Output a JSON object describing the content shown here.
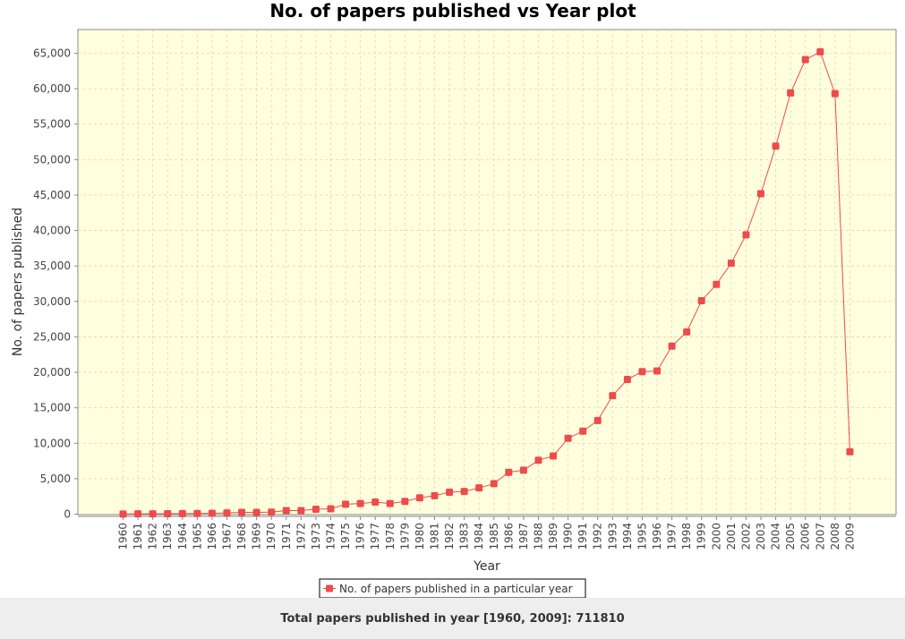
{
  "chart_data": {
    "type": "line",
    "title": "No. of papers published vs Year plot",
    "xlabel": "Year",
    "ylabel": "No. of papers published",
    "ylim": [
      0,
      68000
    ],
    "yticks": [
      0,
      5000,
      10000,
      15000,
      20000,
      25000,
      30000,
      35000,
      40000,
      45000,
      50000,
      55000,
      60000,
      65000
    ],
    "ytick_labels": [
      "0",
      "5,000",
      "10,000",
      "15,000",
      "20,000",
      "25,000",
      "30,000",
      "35,000",
      "40,000",
      "45,000",
      "50,000",
      "55,000",
      "60,000",
      "65,000"
    ],
    "grid": true,
    "legend_position": "bottom-center",
    "categories": [
      "1960",
      "1961",
      "1962",
      "1963",
      "1964",
      "1965",
      "1966",
      "1967",
      "1968",
      "1969",
      "1970",
      "1971",
      "1972",
      "1973",
      "1974",
      "1975",
      "1976",
      "1977",
      "1978",
      "1979",
      "1980",
      "1981",
      "1982",
      "1983",
      "1984",
      "1985",
      "1986",
      "1987",
      "1988",
      "1989",
      "1990",
      "1991",
      "1992",
      "1993",
      "1994",
      "1995",
      "1996",
      "1997",
      "1998",
      "1999",
      "2000",
      "2001",
      "2002",
      "2003",
      "2004",
      "2005",
      "2006",
      "2007",
      "2008",
      "2009"
    ],
    "series": [
      {
        "name": "No. of papers published in a particular year",
        "color": "#ee4b4b",
        "values": [
          20,
          40,
          50,
          60,
          80,
          100,
          120,
          180,
          250,
          250,
          280,
          500,
          500,
          700,
          750,
          1400,
          1500,
          1700,
          1500,
          1800,
          2300,
          2600,
          3100,
          3200,
          3700,
          4300,
          5900,
          6200,
          7600,
          8200,
          10700,
          11700,
          13200,
          16700,
          19000,
          20100,
          20200,
          23700,
          25700,
          30100,
          32400,
          35400,
          39400,
          45200,
          51900,
          59400,
          64100,
          65200,
          59300,
          8800
        ]
      }
    ]
  },
  "colors": {
    "plot_background": "#ffffdd",
    "series": "#ee4b4b",
    "footer_background": "#eeeeee"
  },
  "footer": {
    "text": "Total papers published in year [1960, 2009]: 711810"
  }
}
